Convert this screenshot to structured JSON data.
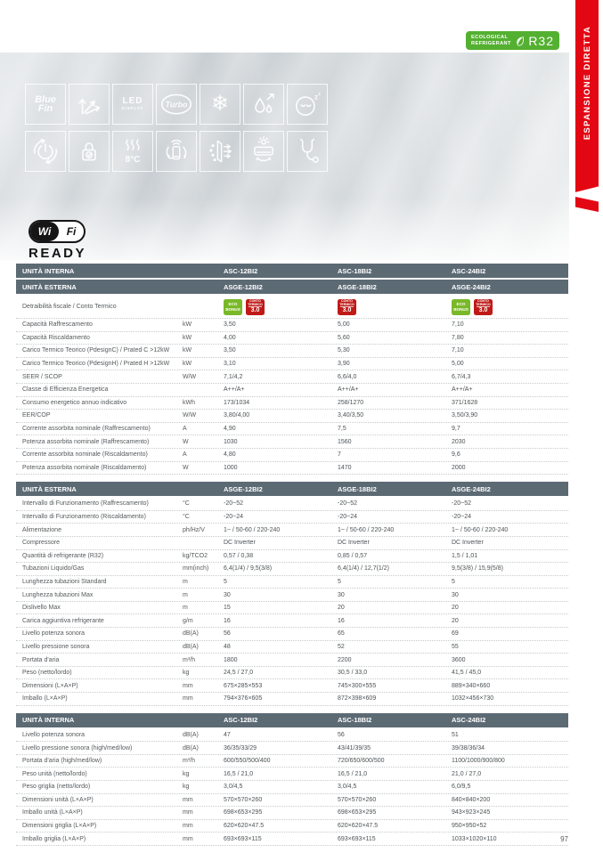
{
  "colors": {
    "accent_red": "#e30613",
    "header_gray": "#5c6a74",
    "r32_green": "#54b031",
    "eco_green": "#79b829",
    "conto_red": "#bf1a17"
  },
  "side_ribbon": {
    "label": "ESPANSIONE DIRETTA"
  },
  "r32_badge": {
    "line1": "ECOLOGICAL",
    "line2": "REFRIGERANT",
    "code": "R32"
  },
  "wifi": {
    "left": "Wi",
    "right": "Fi",
    "ready": "READY"
  },
  "feature_icons": [
    {
      "name": "blue-fin",
      "text1": "Blue",
      "text2": "Fin"
    },
    {
      "name": "air-swing"
    },
    {
      "name": "led-display",
      "text1": "LED",
      "text2": "DISPLAY"
    },
    {
      "name": "turbo",
      "text1": "Turbo"
    },
    {
      "name": "cooling-snowflake",
      "glyph": "❄"
    },
    {
      "name": "dehumidify"
    },
    {
      "name": "sleep-mode",
      "z1": "z",
      "z2": "z"
    },
    {
      "name": "auto-restart"
    },
    {
      "name": "child-lock"
    },
    {
      "name": "heating-8c",
      "text1": "8°C"
    },
    {
      "name": "wifi-remote-control"
    },
    {
      "name": "air-purification"
    },
    {
      "name": "unit-airflow"
    },
    {
      "name": "self-diagnosis"
    }
  ],
  "badges": {
    "eco": {
      "line1": "ECO",
      "line2": "BONUS"
    },
    "conto": {
      "line1": "CONTO",
      "line2": "TERMICO",
      "num": "3.0"
    }
  },
  "spec_tables": [
    {
      "header_rows": [
        {
          "label": "UNITÀ INTERNA",
          "unit": "",
          "cols": [
            "ASC-12BI2",
            "ASC-18BI2",
            "ASC-24BI2"
          ]
        },
        {
          "label": "UNITÀ ESTERNA",
          "unit": "",
          "cols": [
            "ASGE-12BI2",
            "ASGE-18BI2",
            "ASGE-24BI2"
          ]
        }
      ],
      "rows": [
        {
          "label": "Detraibilità fiscale / Conto Termico",
          "unit": "",
          "cols": [
            {
              "badges": [
                "eco",
                "conto"
              ]
            },
            {
              "badges": [
                "conto"
              ]
            },
            {
              "badges": [
                "eco",
                "conto"
              ]
            }
          ]
        },
        {
          "label": "Capacità Raffrescamento",
          "unit": "kW",
          "cols": [
            "3,50",
            "5,00",
            "7,10"
          ]
        },
        {
          "label": "Capacità Riscaldamento",
          "unit": "kW",
          "cols": [
            "4,00",
            "5,60",
            "7,80"
          ]
        },
        {
          "label": "Carico Termico Teorico (PdesignC) / Prated C >12kW",
          "unit": "kW",
          "cols": [
            "3,50",
            "5,30",
            "7,10"
          ]
        },
        {
          "label": "Carico Termico Teorico (PdesignH) / Prated H >12kW",
          "unit": "kW",
          "cols": [
            "3,10",
            "3,90",
            "5,00"
          ]
        },
        {
          "label": "SEER / SCOP",
          "unit": "W/W",
          "cols": [
            "7,1/4,2",
            "6,6/4,0",
            "6,7/4,3"
          ]
        },
        {
          "label": "Classe di Efficienza Energetica",
          "unit": "",
          "cols": [
            "A++/A+",
            "A++/A+",
            "A++/A+"
          ]
        },
        {
          "label": "Consumo energetico annuo indicativo",
          "unit": "kWh",
          "cols": [
            "173/1034",
            "258/1270",
            "371/1628"
          ]
        },
        {
          "label": "EER/COP",
          "unit": "W/W",
          "cols": [
            "3,80/4,00",
            "3,40/3,50",
            "3,50/3,90"
          ]
        },
        {
          "label": "Corrente assorbita nominale (Raffrescamento)",
          "unit": "A",
          "cols": [
            "4,90",
            "7,5",
            "9,7"
          ]
        },
        {
          "label": "Potenza assorbita nominale (Raffrescamento)",
          "unit": "W",
          "cols": [
            "1030",
            "1560",
            "2030"
          ]
        },
        {
          "label": "Corrente assorbita nominale (Riscaldamento)",
          "unit": "A",
          "cols": [
            "4,80",
            "7",
            "9,6"
          ]
        },
        {
          "label": "Potenza assorbita nominale (Riscaldamento)",
          "unit": "W",
          "cols": [
            "1000",
            "1470",
            "2000"
          ]
        }
      ]
    },
    {
      "header_rows": [
        {
          "label": "UNITÀ ESTERNA",
          "unit": "",
          "cols": [
            "ASGE-12BI2",
            "ASGE-18BI2",
            "ASGE-24BI2"
          ]
        }
      ],
      "rows": [
        {
          "label": "Intervallo di Funzionamento (Raffrescamento)",
          "unit": "°C",
          "cols": [
            "-20~52",
            "-20~52",
            "-20~52"
          ]
        },
        {
          "label": "Intervallo di Funzionamento (Riscaldamento)",
          "unit": "°C",
          "cols": [
            "-20~24",
            "-20~24",
            "-20~24"
          ]
        },
        {
          "label": "Alimentazione",
          "unit": "ph/Hz/V",
          "cols": [
            "1~ / 50-60 / 220-240",
            "1~ / 50-60 / 220-240",
            "1~ / 50-60 / 220-240"
          ]
        },
        {
          "label": "Compressore",
          "unit": "",
          "cols": [
            "DC Inverter",
            "DC Inverter",
            "DC Inverter"
          ]
        },
        {
          "label": "Quantità di refrigerante (R32)",
          "unit": "kg/TCO2",
          "cols": [
            "0,57 / 0,38",
            "0,85 / 0,57",
            "1,5 / 1,01"
          ]
        },
        {
          "label": "Tubazioni Liquido/Gas",
          "unit": "mm(inch)",
          "cols": [
            "6,4(1/4) / 9,5(3/8)",
            "6,4(1/4) / 12,7(1/2)",
            "9,5(3/8) / 15,9(5/8)"
          ]
        },
        {
          "label": "Lunghezza tubazioni Standard",
          "unit": "m",
          "cols": [
            "5",
            "5",
            "5"
          ]
        },
        {
          "label": "Lunghezza tubazioni Max",
          "unit": "m",
          "cols": [
            "30",
            "30",
            "30"
          ]
        },
        {
          "label": "Dislivello Max",
          "unit": "m",
          "cols": [
            "15",
            "20",
            "20"
          ]
        },
        {
          "label": "Carica aggiuntiva refrigerante",
          "unit": "g/m",
          "cols": [
            "16",
            "16",
            "20"
          ]
        },
        {
          "label": "Livello potenza sonora",
          "unit": "dB(A)",
          "cols": [
            "56",
            "65",
            "69"
          ]
        },
        {
          "label": "Livello pressione sonora",
          "unit": "dB(A)",
          "cols": [
            "48",
            "52",
            "55"
          ]
        },
        {
          "label": "Portata d'aria",
          "unit": "m³/h",
          "cols": [
            "1800",
            "2200",
            "3600"
          ]
        },
        {
          "label": "Peso (netto/lordo)",
          "unit": "kg",
          "cols": [
            "24,5 / 27,0",
            "30,5 / 33,0",
            "41,5 / 45,0"
          ]
        },
        {
          "label": "Dimensioni (L×A×P)",
          "unit": "mm",
          "cols": [
            "675×285×553",
            "745×300×555",
            "889×340×660"
          ]
        },
        {
          "label": "Imballo (L×A×P)",
          "unit": "mm",
          "cols": [
            "794×376×605",
            "872×398×609",
            "1032×456×730"
          ]
        }
      ]
    },
    {
      "header_rows": [
        {
          "label": "UNITÀ INTERNA",
          "unit": "",
          "cols": [
            "ASC-12BI2",
            "ASC-18BI2",
            "ASC-24BI2"
          ]
        }
      ],
      "rows": [
        {
          "label": "Livello potenza sonora",
          "unit": "dB(A)",
          "cols": [
            "47",
            "56",
            "51"
          ]
        },
        {
          "label": "Livello pressione sonora (high/med/low)",
          "unit": "dB(A)",
          "cols": [
            "36/35/33/29",
            "43/41/39/35",
            "39/38/36/34"
          ]
        },
        {
          "label": "Portata d'aria (high/med/low)",
          "unit": "m³/h",
          "cols": [
            "600/550/500/400",
            "720/650/600/500",
            "1100/1000/900/800"
          ]
        },
        {
          "label": "Peso unità (netto/lordo)",
          "unit": "kg",
          "cols": [
            "16,5 / 21,0",
            "16,5 / 21,0",
            "21,0 / 27,0"
          ]
        },
        {
          "label": "Peso griglia (netto/lordo)",
          "unit": "kg",
          "cols": [
            "3,0/4,5",
            "3,0/4,5",
            "6,0/9,5"
          ]
        },
        {
          "label": "Dimensioni unità (L×A×P)",
          "unit": "mm",
          "cols": [
            "570×570×260",
            "570×570×260",
            "840×840×200"
          ]
        },
        {
          "label": "Imballo unità (L×A×P)",
          "unit": "mm",
          "cols": [
            "698×653×295",
            "698×653×295",
            "943×923×245"
          ]
        },
        {
          "label": "Dimensioni griglia (L×A×P)",
          "unit": "mm",
          "cols": [
            "620×620×47.5",
            "620×620×47.5",
            "950×950×52"
          ]
        },
        {
          "label": "Imballo griglia (L×A×P)",
          "unit": "mm",
          "cols": [
            "693×693×115",
            "693×693×115",
            "1033×1020×110"
          ]
        }
      ]
    }
  ],
  "page_number": "97"
}
